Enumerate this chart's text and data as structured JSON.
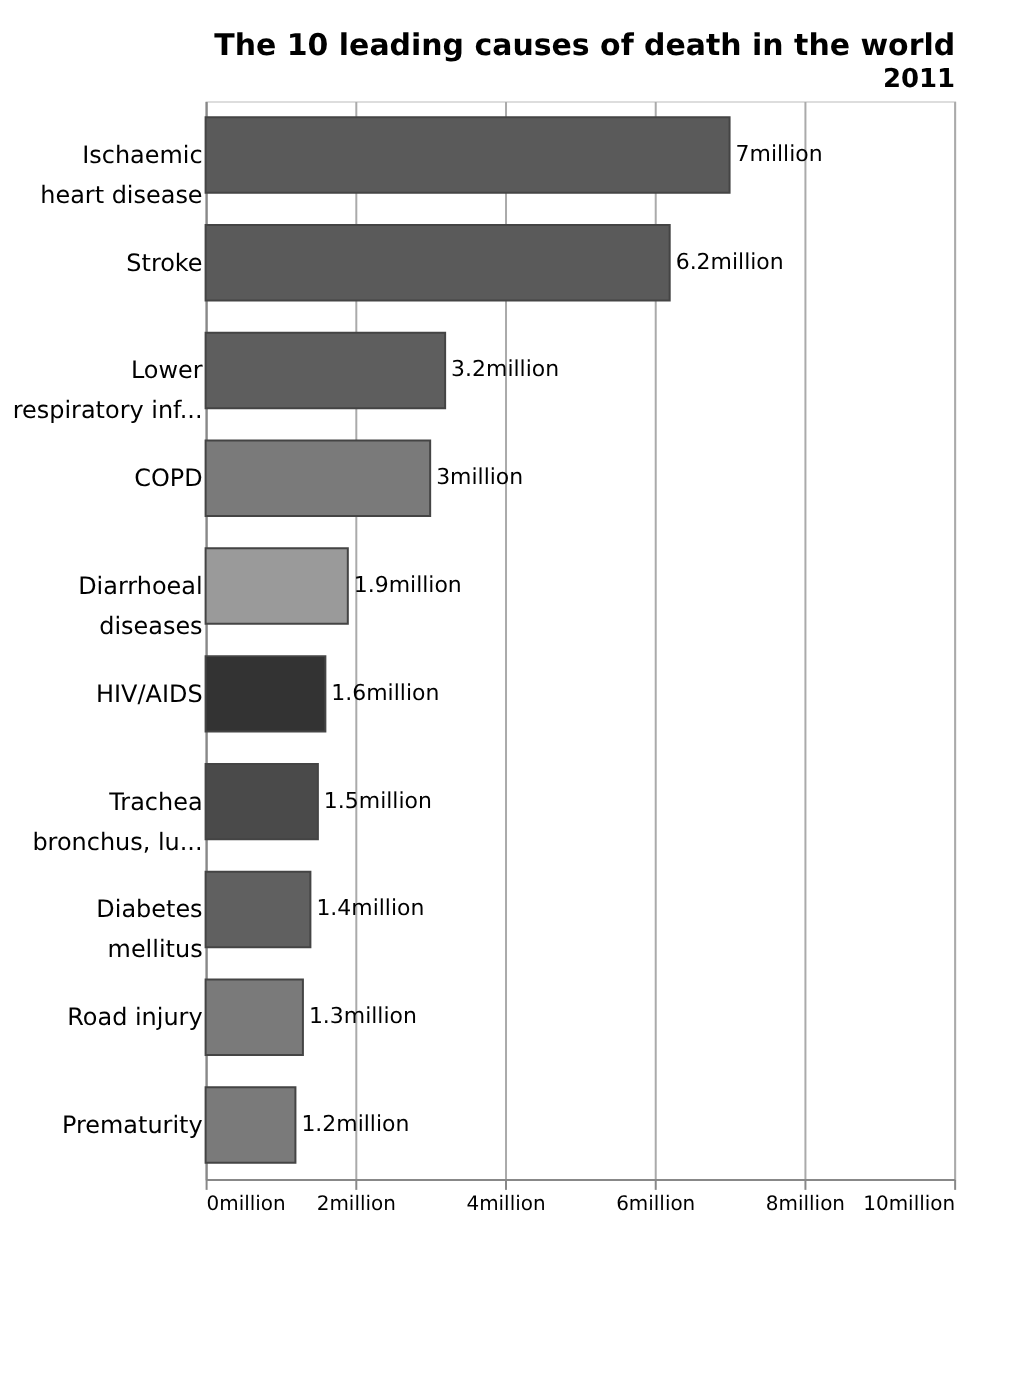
{
  "chart_data": {
    "type": "bar",
    "orientation": "horizontal",
    "title": "The 10 leading causes of death in the world",
    "subtitle": "2011",
    "categories": [
      "Ischaemic\nheart disease",
      "Stroke",
      "Lower\nrespiratory inf...",
      "COPD",
      "Diarrhoeal\ndiseases",
      "HIV/AIDS",
      "Trachea\nbronchus, lu...",
      "Diabetes\nmellitus",
      "Road injury",
      "Prematurity"
    ],
    "values": [
      7,
      6.2,
      3.2,
      3,
      1.9,
      1.6,
      1.5,
      1.4,
      1.3,
      1.2
    ],
    "value_labels": [
      "7million",
      "6.2million",
      "3.2million",
      "3million",
      "1.9million",
      "1.6million",
      "1.5million",
      "1.4million",
      "1.3million",
      "1.2million"
    ],
    "colors": [
      "#5a5a5a",
      "#5a5a5a",
      "#5e5e5e",
      "#7a7a7a",
      "#9a9a9a",
      "#333333",
      "#4a4a4a",
      "#606060",
      "#7a7a7a",
      "#7a7a7a"
    ],
    "xlim": [
      0,
      10
    ],
    "xticks": [
      {
        "value": 0,
        "label": "0million"
      },
      {
        "value": 2,
        "label": "2million"
      },
      {
        "value": 4,
        "label": "4million"
      },
      {
        "value": 6,
        "label": "6million"
      },
      {
        "value": 8,
        "label": "8million"
      },
      {
        "value": 10,
        "label": "10million"
      }
    ],
    "grid": "x"
  }
}
